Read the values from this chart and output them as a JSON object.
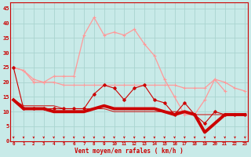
{
  "bg_color": "#c8eae8",
  "grid_color": "#aad4d0",
  "xlim": [
    -0.3,
    23.3
  ],
  "ylim": [
    0,
    47
  ],
  "yticks": [
    0,
    5,
    10,
    15,
    20,
    25,
    30,
    35,
    40,
    45
  ],
  "xticks": [
    0,
    1,
    2,
    3,
    4,
    5,
    6,
    7,
    8,
    9,
    10,
    11,
    12,
    13,
    14,
    15,
    16,
    17,
    18,
    19,
    20,
    21,
    22,
    23
  ],
  "x": [
    0,
    1,
    2,
    3,
    4,
    5,
    6,
    7,
    8,
    9,
    10,
    11,
    12,
    13,
    14,
    15,
    16,
    17,
    18,
    19,
    20,
    21,
    22,
    23
  ],
  "line_gust": [
    25,
    24,
    21,
    20,
    22,
    22,
    22,
    36,
    42,
    36,
    37,
    36,
    38,
    33,
    29,
    21,
    15,
    9,
    9,
    14,
    21,
    17,
    null,
    null
  ],
  "line_avg_hi": [
    25,
    24,
    20,
    20,
    20,
    19,
    19,
    19,
    19,
    19,
    19,
    19,
    19,
    19,
    19,
    19,
    19,
    18,
    18,
    18,
    21,
    20,
    18,
    17
  ],
  "line_var": [
    25,
    11,
    11,
    11,
    11,
    11,
    11,
    11,
    16,
    19,
    18,
    14,
    18,
    19,
    14,
    13,
    9,
    13,
    9,
    6,
    10,
    9,
    9,
    9
  ],
  "line_mean": [
    14,
    11,
    11,
    11,
    10,
    10,
    10,
    10,
    11,
    12,
    11,
    11,
    11,
    11,
    11,
    10,
    9,
    10,
    9,
    3,
    6,
    9,
    9,
    9
  ],
  "line_calm": [
    14,
    12,
    12,
    12,
    12,
    11,
    11,
    11,
    11,
    11,
    10,
    10,
    10,
    10,
    10,
    10,
    10,
    10,
    9,
    9,
    9,
    9,
    9,
    9
  ],
  "xlabel": "Vent moyen/en rafales ( km/h )",
  "color_darkred": "#cc0000",
  "color_lightpink": "#ff9999",
  "color_medred": "#dd3333",
  "color_thinred": "#cc2222"
}
